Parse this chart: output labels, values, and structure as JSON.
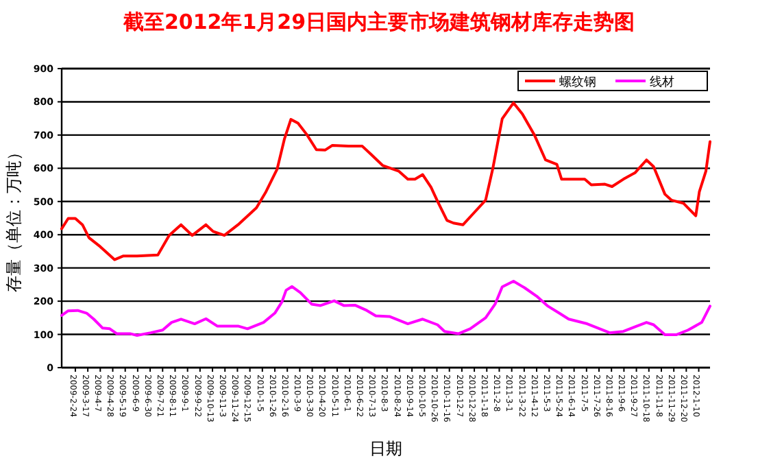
{
  "chart_data": {
    "type": "line",
    "title": "截至2012年1月29日国内主要市场建筑钢材库存走势图",
    "xlabel": "日期",
    "ylabel": "存量（单位：万吨）",
    "ylim": [
      0,
      900
    ],
    "yticks": [
      0,
      100,
      200,
      300,
      400,
      500,
      600,
      700,
      800,
      900
    ],
    "xlim": [
      "2009-02-01",
      "2012-01-29"
    ],
    "xticks": [
      {
        "value": "2009-02-24",
        "label": "2009-2-24"
      },
      {
        "value": "2009-03-17",
        "label": "2009-3-17"
      },
      {
        "value": "2009-04-07",
        "label": "2009-4-7"
      },
      {
        "value": "2009-04-28",
        "label": "2009-4-28"
      },
      {
        "value": "2009-05-19",
        "label": "2009-5-19"
      },
      {
        "value": "2009-06-09",
        "label": "2009-6-9"
      },
      {
        "value": "2009-06-30",
        "label": "2009-6-30"
      },
      {
        "value": "2009-07-21",
        "label": "2009-7-21"
      },
      {
        "value": "2009-08-11",
        "label": "2009-8-11"
      },
      {
        "value": "2009-09-01",
        "label": "2009-9-1"
      },
      {
        "value": "2009-09-22",
        "label": "2009-9-22"
      },
      {
        "value": "2009-10-13",
        "label": "2009-10-13"
      },
      {
        "value": "2009-11-03",
        "label": "2009-11-3"
      },
      {
        "value": "2009-11-24",
        "label": "2009-11-24"
      },
      {
        "value": "2009-12-15",
        "label": "2009-12-15"
      },
      {
        "value": "2010-01-05",
        "label": "2010-1-5"
      },
      {
        "value": "2010-01-26",
        "label": "2010-1-26"
      },
      {
        "value": "2010-02-16",
        "label": "2010-2-16"
      },
      {
        "value": "2010-03-09",
        "label": "2010-3-9"
      },
      {
        "value": "2010-03-30",
        "label": "2010-3-30"
      },
      {
        "value": "2010-04-20",
        "label": "2010-4-20"
      },
      {
        "value": "2010-05-11",
        "label": "2010-5-11"
      },
      {
        "value": "2010-06-01",
        "label": "2010-6-1"
      },
      {
        "value": "2010-06-22",
        "label": "2010-6-22"
      },
      {
        "value": "2010-07-13",
        "label": "2010-7-13"
      },
      {
        "value": "2010-08-03",
        "label": "2010-8-3"
      },
      {
        "value": "2010-08-24",
        "label": "2010-8-24"
      },
      {
        "value": "2010-09-14",
        "label": "2010-9-14"
      },
      {
        "value": "2010-10-05",
        "label": "2010-10-5"
      },
      {
        "value": "2010-10-26",
        "label": "2010-10-26"
      },
      {
        "value": "2010-11-16",
        "label": "2010-11-16"
      },
      {
        "value": "2010-12-07",
        "label": "2010-12-7"
      },
      {
        "value": "2010-12-28",
        "label": "2010-12-28"
      },
      {
        "value": "2011-01-18",
        "label": "2011-1-18"
      },
      {
        "value": "2011-02-08",
        "label": "2011-2-8"
      },
      {
        "value": "2011-03-01",
        "label": "2011-3-1"
      },
      {
        "value": "2011-03-22",
        "label": "2011-3-22"
      },
      {
        "value": "2011-04-12",
        "label": "2011-4-12"
      },
      {
        "value": "2011-05-03",
        "label": "2011-5-3"
      },
      {
        "value": "2011-05-24",
        "label": "2011-5-24"
      },
      {
        "value": "2011-06-14",
        "label": "2011-6-14"
      },
      {
        "value": "2011-07-05",
        "label": "2011-7-5"
      },
      {
        "value": "2011-07-26",
        "label": "2011-7-26"
      },
      {
        "value": "2011-08-16",
        "label": "2011-8-16"
      },
      {
        "value": "2011-09-06",
        "label": "2011-9-6"
      },
      {
        "value": "2011-09-27",
        "label": "2011-9-27"
      },
      {
        "value": "2011-10-18",
        "label": "2011-10-18"
      },
      {
        "value": "2011-11-08",
        "label": "2011-11-8"
      },
      {
        "value": "2011-11-29",
        "label": "2011-11-29"
      },
      {
        "value": "2011-12-20",
        "label": "2011-12-20"
      },
      {
        "value": "2012-01-10",
        "label": "2012-1-10"
      }
    ],
    "grid": "y",
    "legend": "top right",
    "marker": "none",
    "line_style": "solid",
    "series": [
      {
        "name": "螺纹钢",
        "color": "#ff0000",
        "x": [
          "2009-02-01",
          "2009-02-12",
          "2009-02-24",
          "2009-03-08",
          "2009-03-19",
          "2009-04-07",
          "2009-05-01",
          "2009-05-16",
          "2009-06-08",
          "2009-07-13",
          "2009-08-01",
          "2009-08-21",
          "2009-09-09",
          "2009-10-02",
          "2009-10-14",
          "2009-11-02",
          "2009-11-25",
          "2009-12-26",
          "2010-01-11",
          "2010-01-30",
          "2010-02-11",
          "2010-02-22",
          "2010-03-06",
          "2010-03-21",
          "2010-04-06",
          "2010-04-21",
          "2010-05-03",
          "2010-05-30",
          "2010-06-22",
          "2010-07-07",
          "2010-07-27",
          "2010-08-23",
          "2010-09-07",
          "2010-09-19",
          "2010-10-02",
          "2010-10-16",
          "2010-10-27",
          "2010-11-12",
          "2010-11-23",
          "2010-12-09",
          "2010-12-28",
          "2011-01-16",
          "2011-01-28",
          "2011-02-13",
          "2011-03-04",
          "2011-03-19",
          "2011-04-08",
          "2011-04-27",
          "2011-05-16",
          "2011-05-24",
          "2011-06-12",
          "2011-07-02",
          "2011-07-13",
          "2011-08-05",
          "2011-08-17",
          "2011-09-05",
          "2011-09-25",
          "2011-10-14",
          "2011-10-26",
          "2011-11-14",
          "2011-11-25",
          "2011-12-15",
          "2012-01-05",
          "2012-01-11",
          "2012-01-22",
          "2012-01-29"
        ],
        "values": [
          418,
          449,
          449,
          430,
          391,
          364,
          325,
          336,
          336,
          339,
          398,
          430,
          398,
          430,
          410,
          398,
          430,
          481,
          529,
          598,
          687,
          747,
          736,
          701,
          656,
          655,
          669,
          667,
          667,
          642,
          608,
          591,
          567,
          567,
          581,
          543,
          501,
          443,
          435,
          430,
          467,
          504,
          598,
          749,
          797,
          763,
          701,
          625,
          612,
          567,
          567,
          567,
          550,
          552,
          545,
          567,
          587,
          625,
          605,
          522,
          504,
          495,
          457,
          529,
          591,
          680
        ]
      },
      {
        "name": "线材",
        "color": "#ff00ff",
        "x": [
          "2009-02-01",
          "2009-02-12",
          "2009-02-28",
          "2009-03-15",
          "2009-03-27",
          "2009-04-11",
          "2009-04-23",
          "2009-05-05",
          "2009-05-28",
          "2009-06-08",
          "2009-07-01",
          "2009-07-21",
          "2009-08-05",
          "2009-08-21",
          "2009-09-13",
          "2009-10-02",
          "2009-10-21",
          "2009-11-25",
          "2009-12-11",
          "2010-01-07",
          "2010-01-26",
          "2010-02-07",
          "2010-02-14",
          "2010-02-24",
          "2010-03-10",
          "2010-03-29",
          "2010-04-13",
          "2010-05-06",
          "2010-05-22",
          "2010-06-10",
          "2010-06-30",
          "2010-07-15",
          "2010-08-07",
          "2010-09-07",
          "2010-10-02",
          "2010-10-27",
          "2010-11-08",
          "2010-12-01",
          "2010-12-21",
          "2011-01-16",
          "2011-02-01",
          "2011-02-13",
          "2011-03-04",
          "2011-03-23",
          "2011-04-12",
          "2011-05-01",
          "2011-05-20",
          "2011-06-05",
          "2011-07-06",
          "2011-08-13",
          "2011-09-05",
          "2011-09-25",
          "2011-10-14",
          "2011-10-26",
          "2011-11-14",
          "2011-12-03",
          "2011-12-23",
          "2012-01-15",
          "2012-01-29"
        ],
        "values": [
          157,
          171,
          172,
          164,
          146,
          119,
          117,
          102,
          102,
          97,
          105,
          113,
          136,
          146,
          132,
          147,
          125,
          125,
          117,
          136,
          164,
          198,
          233,
          244,
          226,
          191,
          187,
          201,
          187,
          188,
          172,
          156,
          154,
          132,
          146,
          129,
          109,
          102,
          117,
          150,
          191,
          243,
          260,
          240,
          215,
          185,
          164,
          146,
          132,
          105,
          109,
          123,
          136,
          129,
          99,
          99,
          113,
          136,
          185
        ]
      }
    ]
  }
}
